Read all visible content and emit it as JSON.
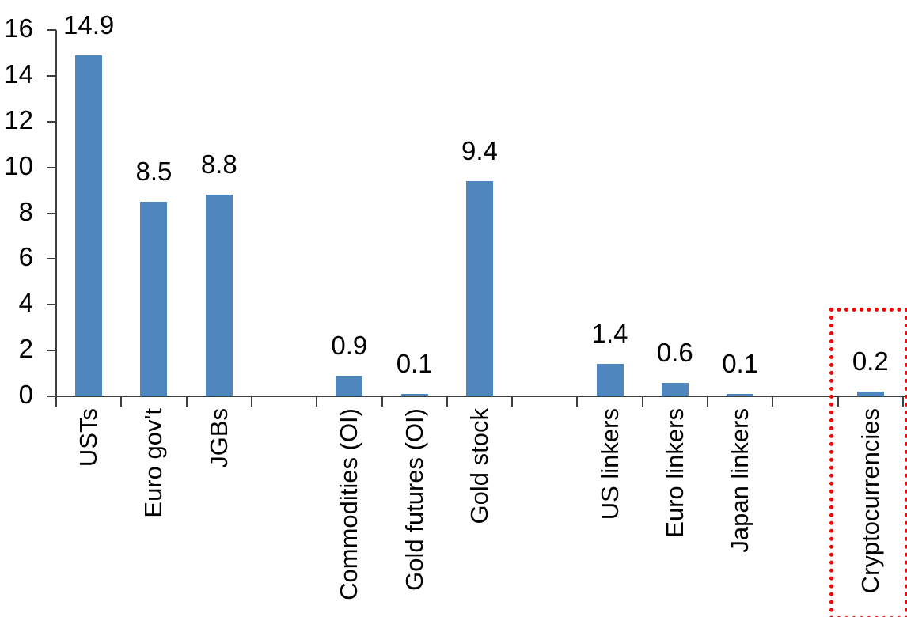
{
  "chart_data": {
    "type": "bar",
    "title": "",
    "xlabel": "",
    "ylabel": "",
    "ylim": [
      0,
      16
    ],
    "yticks": [
      0,
      2,
      4,
      6,
      8,
      10,
      12,
      14,
      16
    ],
    "grid": false,
    "legend": false,
    "bar_color": "#4E86BD",
    "axis_color": "#3F3F3F",
    "text_color": "#000000",
    "total_slots": 13,
    "gap_slots": [
      3,
      7,
      11
    ],
    "categories": [
      "USTs",
      "Euro gov't",
      "JGBs",
      "Commodities (OI)",
      "Gold futures (OI)",
      "Gold stock",
      "US linkers",
      "Euro linkers",
      "Japan linkers",
      "Cryptocurrencies"
    ],
    "values": [
      14.9,
      8.5,
      8.8,
      0.9,
      0.1,
      9.4,
      1.4,
      0.6,
      0.1,
      0.2
    ],
    "items": [
      {
        "label": "USTs",
        "value": 14.9,
        "display": "14.9",
        "slot": 0
      },
      {
        "label": "Euro gov't",
        "value": 8.5,
        "display": "8.5",
        "slot": 1
      },
      {
        "label": "JGBs",
        "value": 8.8,
        "display": "8.8",
        "slot": 2
      },
      {
        "label": "Commodities (OI)",
        "value": 0.9,
        "display": "0.9",
        "slot": 4
      },
      {
        "label": "Gold futures (OI)",
        "value": 0.1,
        "display": "0.1",
        "slot": 5
      },
      {
        "label": "Gold stock",
        "value": 9.4,
        "display": "9.4",
        "slot": 6
      },
      {
        "label": "US linkers",
        "value": 1.4,
        "display": "1.4",
        "slot": 8
      },
      {
        "label": "Euro linkers",
        "value": 0.6,
        "display": "0.6",
        "slot": 9
      },
      {
        "label": "Japan linkers",
        "value": 0.1,
        "display": "0.1",
        "slot": 10
      },
      {
        "label": "Cryptocurrencies",
        "value": 0.2,
        "display": "0.2",
        "slot": 12
      }
    ],
    "highlight": {
      "target": "Cryptocurrencies",
      "shape": "dotted-rectangle",
      "border_color": "#FF0000"
    }
  }
}
